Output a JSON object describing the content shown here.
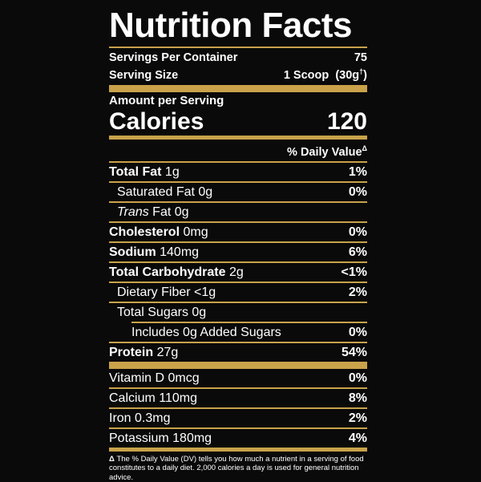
{
  "label": {
    "title": "Nutrition Facts",
    "servings_per_container_label": "Servings Per Container",
    "servings_per_container_value": "75",
    "serving_size_label": "Serving Size",
    "serving_size_value": "1 Scoop",
    "serving_size_grams": "(30g",
    "serving_size_mark": "†",
    "serving_size_close": ")",
    "amount_per_serving": "Amount per Serving",
    "calories_label": "Calories",
    "calories_value": "120",
    "daily_value_header": "% Daily Value",
    "daily_value_mark": "Δ",
    "nutrients": [
      {
        "name": "Total Fat",
        "amount": " 1g",
        "dv": "1%"
      },
      {
        "name": "Saturated Fat",
        "amount": " 0g",
        "dv": "0%"
      },
      {
        "name": "Trans",
        "amount": " Fat 0g",
        "dv": ""
      },
      {
        "name": "Cholesterol",
        "amount": " 0mg",
        "dv": "0%"
      },
      {
        "name": "Sodium",
        "amount": " 140mg",
        "dv": "6%"
      },
      {
        "name": "Total Carbohydrate",
        "amount": " 2g",
        "dv": "<1%"
      },
      {
        "name": "Dietary Fiber",
        "amount": " <1g",
        "dv": "2%"
      },
      {
        "name": "Total Sugars",
        "amount": " 0g",
        "dv": ""
      },
      {
        "name": "Includes 0g Added Sugars",
        "amount": "",
        "dv": "0%"
      },
      {
        "name": "Protein",
        "amount": " 27g",
        "dv": "54%"
      }
    ],
    "vitamins": [
      {
        "text": "Vitamin D 0mcg",
        "dv": "0%"
      },
      {
        "text": "Calcium 110mg",
        "dv": "8%"
      },
      {
        "text": "Iron 0.3mg",
        "dv": "2%"
      },
      {
        "text": "Potassium 180mg",
        "dv": "4%"
      }
    ],
    "footnote_mark": "Δ",
    "footnote_text": " The % Daily Value (DV) tells you how much a nutrient in a serving of food constitutes to a daily diet. 2,000 calories a day is used for general nutrition advice."
  },
  "colors": {
    "background": "#0a0a0a",
    "text": "#ffffff",
    "rule": "#c9a24a"
  }
}
